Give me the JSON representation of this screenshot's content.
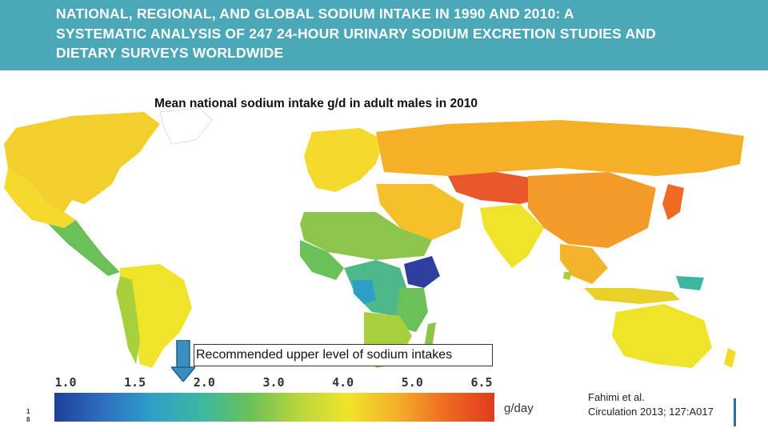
{
  "header": {
    "title": "NATIONAL, REGIONAL, AND GLOBAL SODIUM INTAKE IN 1990 AND 2010: A SYSTEMATIC ANALYSIS OF 247 24-HOUR URINARY SODIUM EXCRETION STUDIES AND DIETARY SURVEYS WORLDWIDE"
  },
  "map": {
    "title": "Mean national sodium intake  g/d in adult males in 2010"
  },
  "callout": {
    "text": "Recommended upper level of sodium intakes",
    "marker_value": 2.0
  },
  "legend": {
    "ticks": [
      "1.0",
      "1.5",
      "2.0",
      "3.0",
      "4.0",
      "5.0",
      "6.5"
    ],
    "unit": "g/day",
    "colors": [
      "#1f3f9a",
      "#2f6fc0",
      "#2ea0c8",
      "#3cb8a0",
      "#6cc05a",
      "#b8d63c",
      "#f0e42a",
      "#f5b028",
      "#ef6a22",
      "#e03b1e"
    ]
  },
  "citation": {
    "line1": "Fahimi et al.",
    "line2": "Circulation 2013; 127:A017"
  },
  "slide_number": {
    "a": "1",
    "b": "8"
  },
  "colors": {
    "header": "#4aa8b8",
    "accent_rule": "#2a6f9a",
    "arrow": "#3a8fc0"
  }
}
